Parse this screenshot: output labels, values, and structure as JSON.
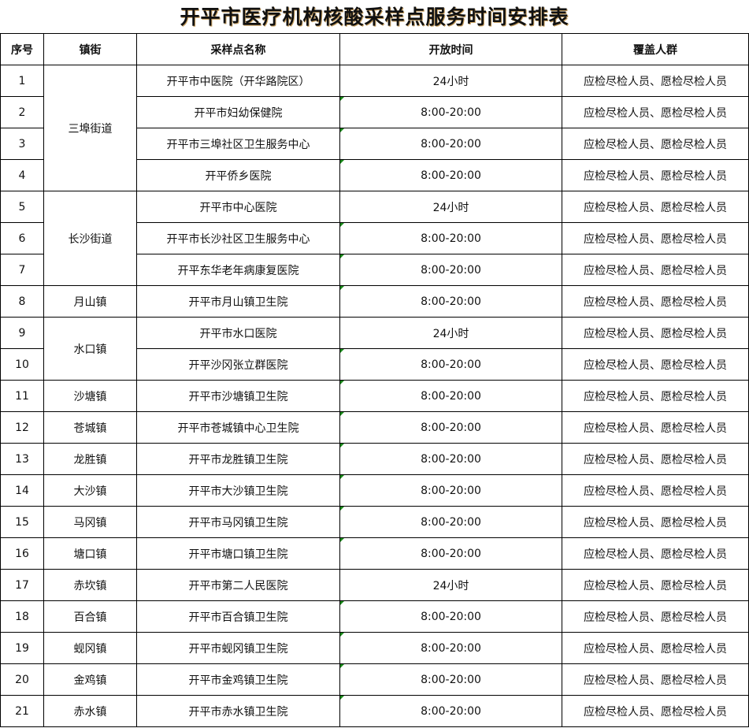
{
  "title": "开平市医疗机构核酸采样点服务时间安排表",
  "headers": [
    "序号",
    "镇街",
    "采样点名称",
    "开放时间",
    "覆盖人群"
  ],
  "colors": {
    "text_number_indicator": "#1a8a1a"
  },
  "rows": [
    {
      "no": "1",
      "town": "三埠街道",
      "span": 4,
      "site": "开平市中医院（开华路院区）",
      "time": "24小时",
      "people": "应检尽检人员、愿检尽检人员"
    },
    {
      "no": "2",
      "site": "开平市妇幼保健院",
      "time": "8:00-20:00",
      "people": "应检尽检人员、愿检尽检人员"
    },
    {
      "no": "3",
      "site": "开平市三埠社区卫生服务中心",
      "time": "8:00-20:00",
      "people": "应检尽检人员、愿检尽检人员"
    },
    {
      "no": "4",
      "site": "开平侨乡医院",
      "time": "8:00-20:00",
      "people": "应检尽检人员、愿检尽检人员"
    },
    {
      "no": "5",
      "town": "长沙街道",
      "span": 3,
      "site": "开平市中心医院",
      "time": "24小时",
      "people": "应检尽检人员、愿检尽检人员"
    },
    {
      "no": "6",
      "site": "开平市长沙社区卫生服务中心",
      "time": "8:00-20:00",
      "people": "应检尽检人员、愿检尽检人员"
    },
    {
      "no": "7",
      "site": "开平东华老年病康复医院",
      "time": "8:00-20:00",
      "people": "应检尽检人员、愿检尽检人员"
    },
    {
      "no": "8",
      "town": "月山镇",
      "span": 1,
      "site": "开平市月山镇卫生院",
      "time": "8:00-20:00",
      "people": "应检尽检人员、愿检尽检人员"
    },
    {
      "no": "9",
      "town": "水口镇",
      "span": 2,
      "site": "开平市水口医院",
      "time": "24小时",
      "people": "应检尽检人员、愿检尽检人员"
    },
    {
      "no": "10",
      "site": "开平沙冈张立群医院",
      "time": "8:00-20:00",
      "people": "应检尽检人员、愿检尽检人员"
    },
    {
      "no": "11",
      "town": "沙塘镇",
      "span": 1,
      "site": "开平市沙塘镇卫生院",
      "time": "8:00-20:00",
      "people": "应检尽检人员、愿检尽检人员"
    },
    {
      "no": "12",
      "town": "苍城镇",
      "span": 1,
      "site": "开平市苍城镇中心卫生院",
      "time": "8:00-20:00",
      "people": "应检尽检人员、愿检尽检人员"
    },
    {
      "no": "13",
      "town": "龙胜镇",
      "span": 1,
      "site": "开平市龙胜镇卫生院",
      "time": "8:00-20:00",
      "people": "应检尽检人员、愿检尽检人员"
    },
    {
      "no": "14",
      "town": "大沙镇",
      "span": 1,
      "site": "开平市大沙镇卫生院",
      "time": "8:00-20:00",
      "people": "应检尽检人员、愿检尽检人员"
    },
    {
      "no": "15",
      "town": "马冈镇",
      "span": 1,
      "site": "开平市马冈镇卫生院",
      "time": "8:00-20:00",
      "people": "应检尽检人员、愿检尽检人员"
    },
    {
      "no": "16",
      "town": "塘口镇",
      "span": 1,
      "site": "开平市塘口镇卫生院",
      "time": "8:00-20:00",
      "people": "应检尽检人员、愿检尽检人员"
    },
    {
      "no": "17",
      "town": "赤坎镇",
      "span": 1,
      "site": "开平市第二人民医院",
      "time": "24小时",
      "people": "应检尽检人员、愿检尽检人员"
    },
    {
      "no": "18",
      "town": "百合镇",
      "span": 1,
      "site": "开平市百合镇卫生院",
      "time": "8:00-20:00",
      "people": "应检尽检人员、愿检尽检人员"
    },
    {
      "no": "19",
      "town": "蚬冈镇",
      "span": 1,
      "site": "开平市蚬冈镇卫生院",
      "time": "8:00-20:00",
      "people": "应检尽检人员、愿检尽检人员"
    },
    {
      "no": "20",
      "town": "金鸡镇",
      "span": 1,
      "site": "开平市金鸡镇卫生院",
      "time": "8:00-20:00",
      "people": "应检尽检人员、愿检尽检人员"
    },
    {
      "no": "21",
      "town": "赤水镇",
      "span": 1,
      "site": "开平市赤水镇卫生院",
      "time": "8:00-20:00",
      "people": "应检尽检人员、愿检尽检人员"
    }
  ]
}
